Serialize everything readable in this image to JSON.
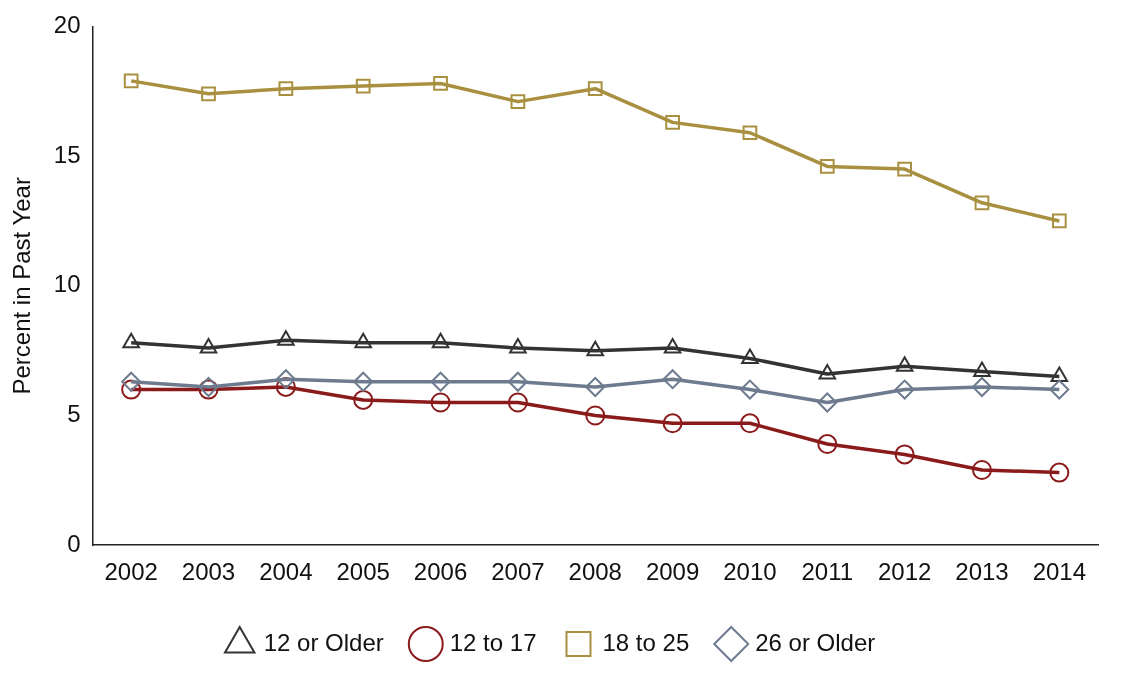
{
  "chart_data": {
    "type": "line",
    "ylabel": "Percent in Past Year",
    "categories": [
      "2002",
      "2003",
      "2004",
      "2005",
      "2006",
      "2007",
      "2008",
      "2009",
      "2010",
      "2011",
      "2012",
      "2013",
      "2014"
    ],
    "series": [
      {
        "name": "12 or Older",
        "color": "#333333",
        "marker": "triangle",
        "values": [
          7.8,
          7.6,
          7.9,
          7.8,
          7.8,
          7.6,
          7.5,
          7.6,
          7.2,
          6.6,
          6.9,
          6.7,
          6.5
        ]
      },
      {
        "name": "12 to 17",
        "color": "#8b1a1a",
        "marker": "circle",
        "values": [
          6.0,
          6.0,
          6.1,
          5.6,
          5.5,
          5.5,
          5.0,
          4.7,
          4.7,
          3.9,
          3.5,
          2.9,
          2.8
        ]
      },
      {
        "name": "18 to 25",
        "color": "#a89040",
        "marker": "square",
        "values": [
          17.9,
          17.4,
          17.6,
          17.7,
          17.8,
          17.1,
          17.6,
          16.3,
          15.9,
          14.6,
          14.5,
          13.2,
          12.5
        ]
      },
      {
        "name": "26 or Older",
        "color": "#6e7b8f",
        "marker": "diamond",
        "values": [
          6.3,
          6.1,
          6.4,
          6.3,
          6.3,
          6.3,
          6.1,
          6.4,
          6.0,
          5.5,
          6.0,
          6.1,
          6.0
        ]
      }
    ],
    "ylim": [
      0,
      20
    ],
    "yticks": [
      0,
      5,
      10,
      15,
      20
    ],
    "grid": false,
    "legend": "bottom"
  }
}
